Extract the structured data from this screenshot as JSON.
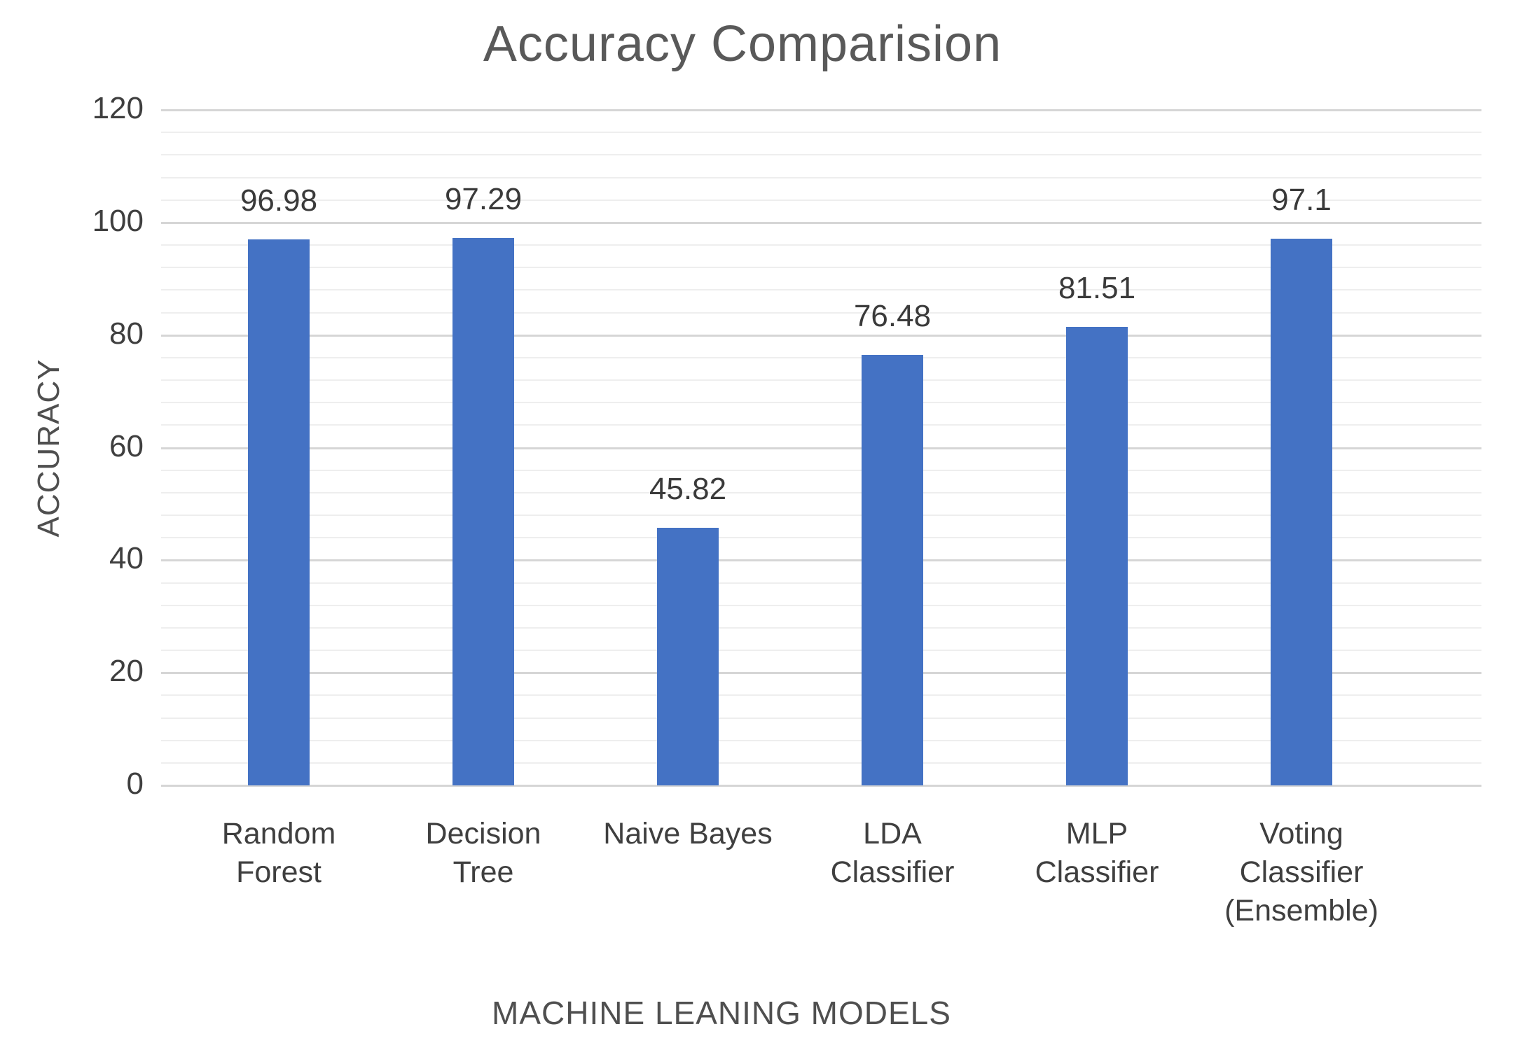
{
  "chart": {
    "title": "Accuracy Comparision",
    "y_axis_title": "ACCURACY",
    "x_axis_title": "MACHINE LEANING MODELS"
  },
  "chart_data": {
    "type": "bar",
    "title": "Accuracy Comparision",
    "xlabel": "MACHINE LEANING MODELS",
    "ylabel": "ACCURACY",
    "categories": [
      "Random Forest",
      "Decision Tree",
      "Naive Bayes",
      "LDA Classifier",
      "MLP Classifier",
      "Voting Classifier (Ensemble)"
    ],
    "category_label_lines": [
      "Random\nForest",
      "Decision\nTree",
      "Naive Bayes",
      "LDA\nClassifier",
      "MLP\nClassifier",
      "Voting\nClassifier\n(Ensemble)"
    ],
    "values": [
      96.98,
      97.29,
      45.82,
      76.48,
      81.51,
      97.1
    ],
    "data_labels": [
      "96.98",
      "97.29",
      "45.82",
      "76.48",
      "81.51",
      "97.1"
    ],
    "ylim": [
      0,
      120
    ],
    "y_ticks": [
      0,
      20,
      40,
      60,
      80,
      100,
      120
    ],
    "y_tick_labels": [
      "0",
      "20",
      "40",
      "60",
      "80",
      "100",
      "120"
    ],
    "y_minor_unit": 4,
    "grid": "horizontal major + minor",
    "legend": "none",
    "bar_color": "#4472C4",
    "major_grid_color": "#d6d6d6",
    "minor_grid_color": "#eeeeee",
    "title_color": "#595959",
    "label_color": "#3f3f3f"
  }
}
